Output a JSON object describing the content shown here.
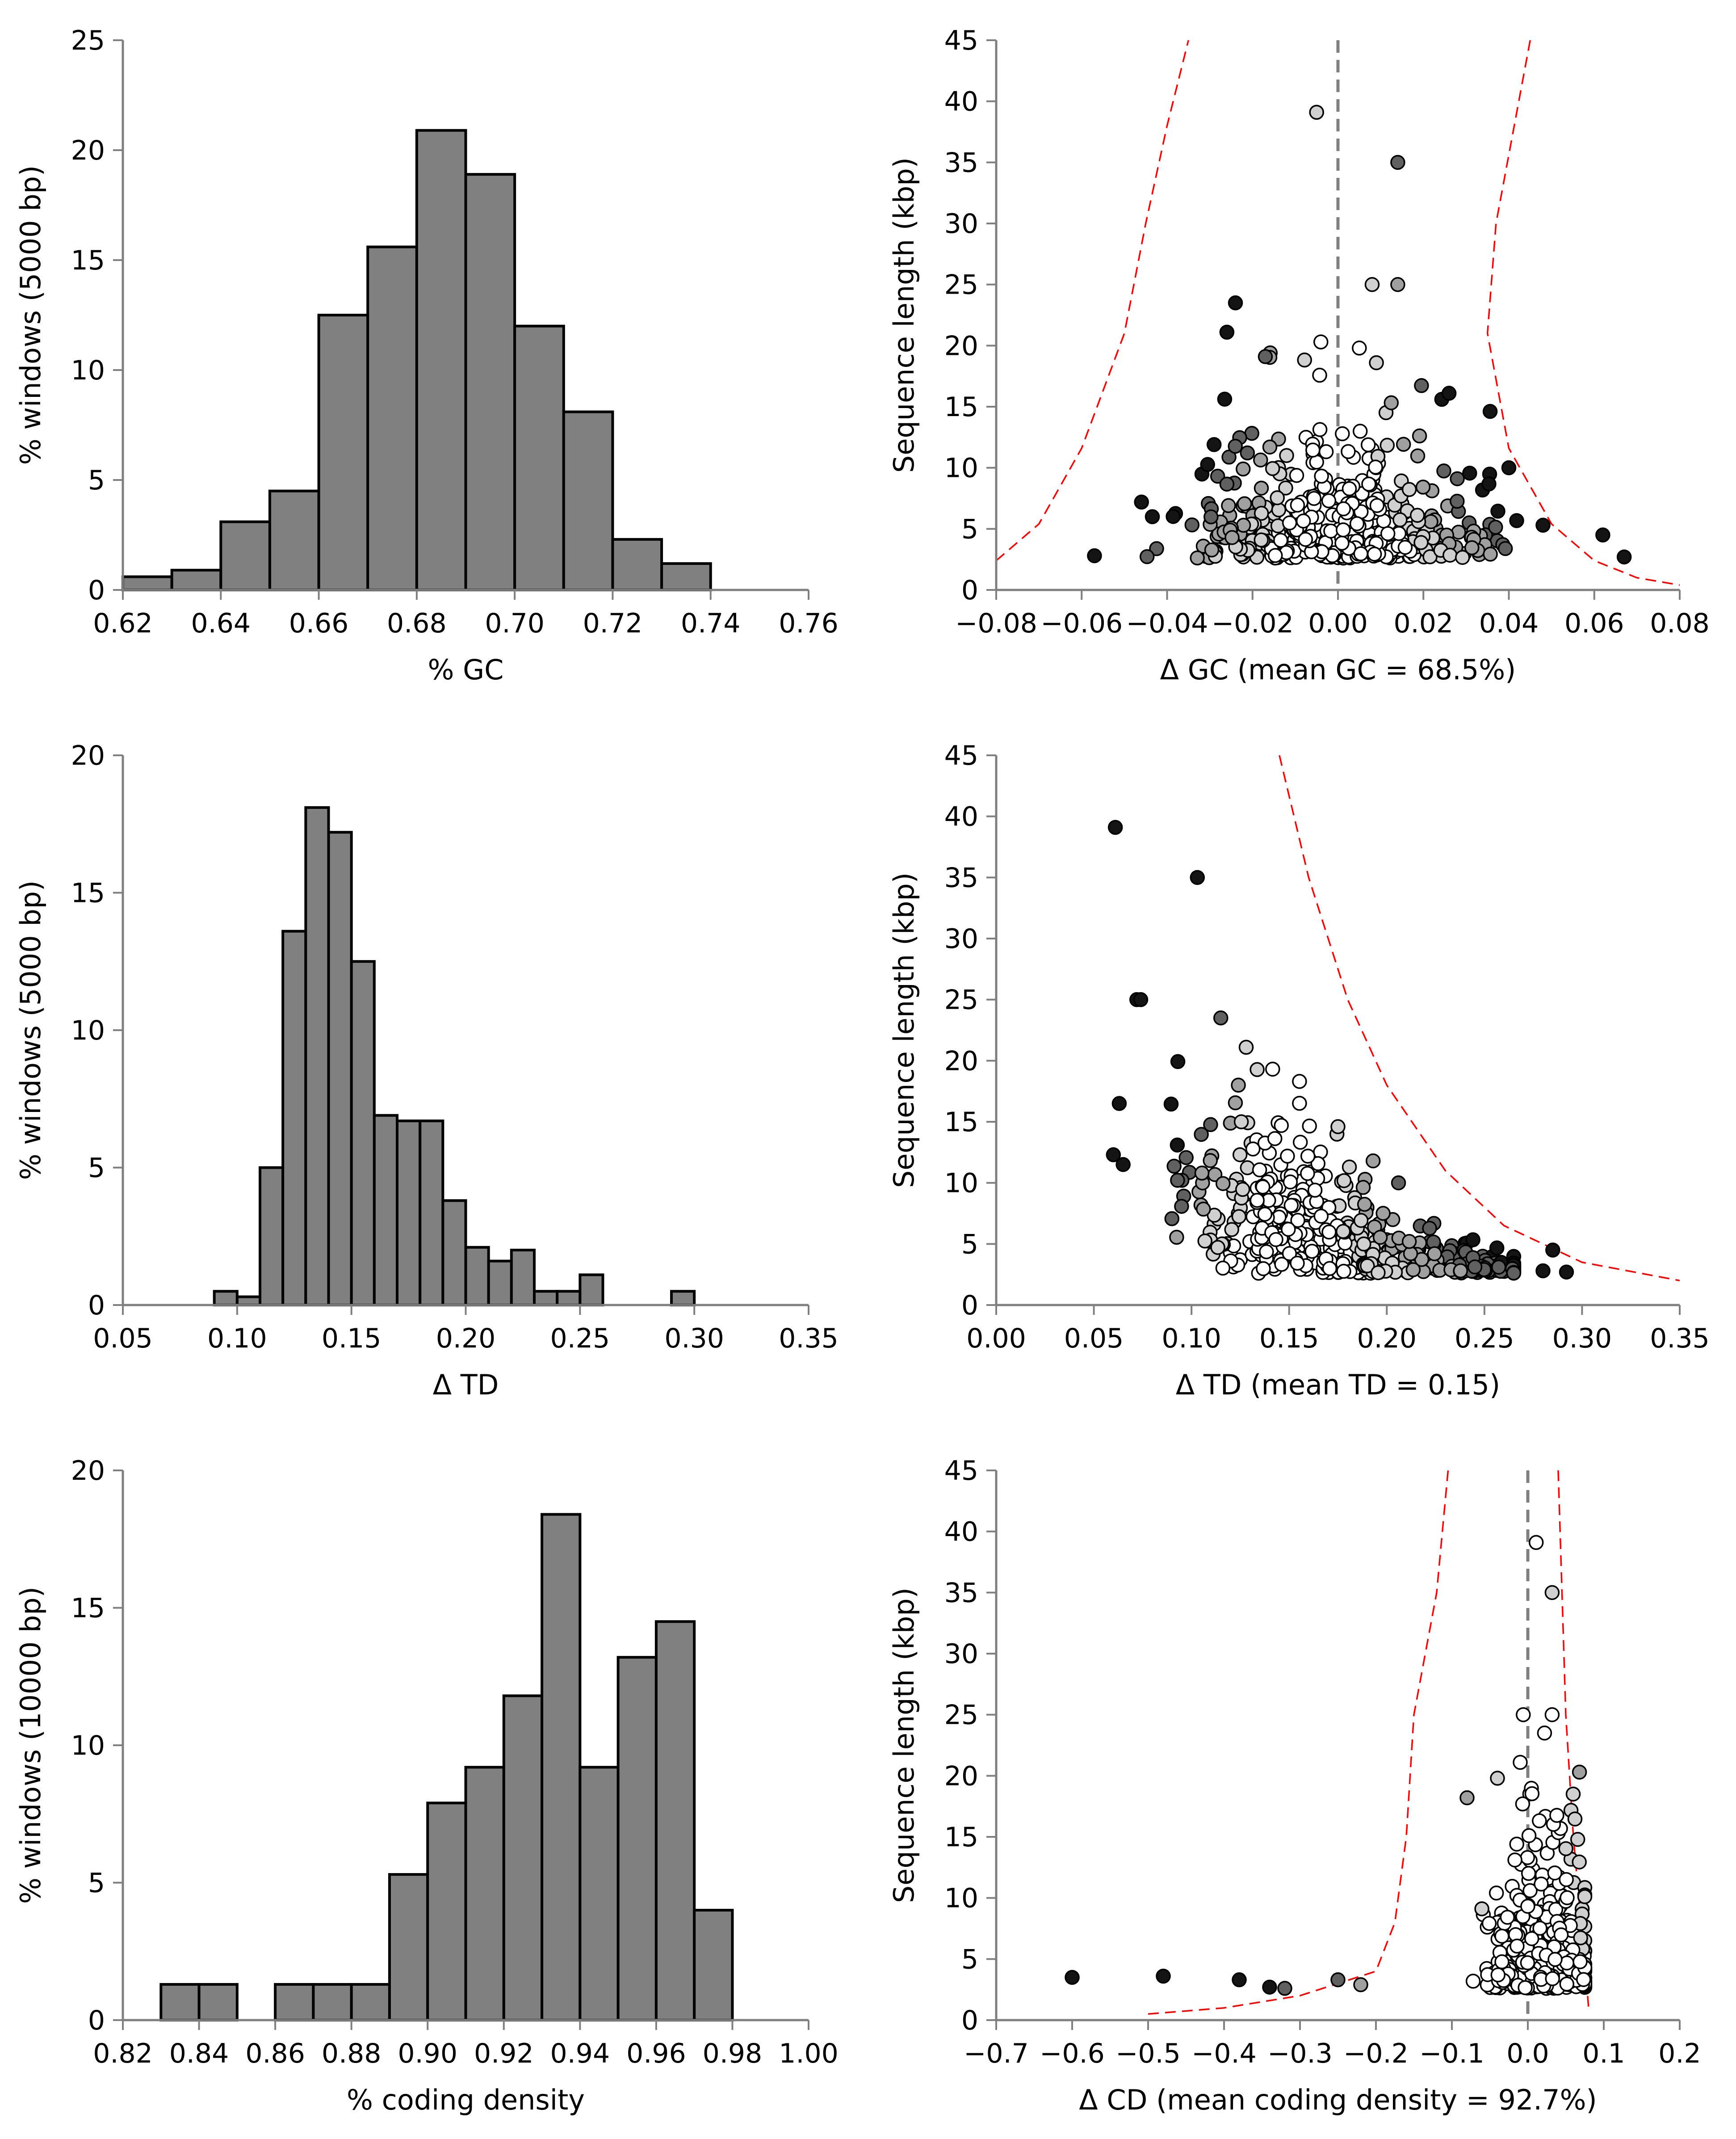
{
  "colors": {
    "bar_fill": "#808080",
    "bar_edge": "#000000",
    "axis": "#7f7f7f",
    "guide": "#7f7f7f",
    "threshold": "#ff0000",
    "point_edge": "#000000",
    "point_shades": [
      "#ffffff",
      "#d0d0d0",
      "#a0a0a0",
      "#606060",
      "#141414"
    ]
  },
  "chart_data": [
    {
      "id": "gc-hist",
      "type": "bar",
      "xlabel": "% GC",
      "ylabel": "% windows (5000 bp)",
      "xlim": [
        0.62,
        0.76
      ],
      "ylim": [
        0,
        25
      ],
      "xticks": [
        "0.62",
        "0.64",
        "0.66",
        "0.68",
        "0.70",
        "0.72",
        "0.74",
        "0.76"
      ],
      "yticks": [
        "0",
        "5",
        "10",
        "15",
        "20",
        "25"
      ],
      "bin_width": 0.01,
      "bin_starts": [
        0.62,
        0.63,
        0.64,
        0.65,
        0.66,
        0.67,
        0.68,
        0.69,
        0.7,
        0.71,
        0.72,
        0.73
      ],
      "values": [
        0.6,
        0.9,
        3.1,
        4.5,
        12.5,
        15.6,
        20.9,
        18.9,
        12.0,
        8.1,
        2.3,
        1.2
      ]
    },
    {
      "id": "gc-scatter",
      "type": "scatter",
      "xlabel": "Δ GC (mean GC = 68.5%)",
      "ylabel": "Sequence length (kbp)",
      "xlim": [
        -0.08,
        0.08
      ],
      "ylim": [
        0,
        45
      ],
      "xticks": [
        "−0.08",
        "−0.06",
        "−0.04",
        "−0.02",
        "0.00",
        "0.02",
        "0.04",
        "0.06",
        "0.08"
      ],
      "yticks": [
        "0",
        "5",
        "10",
        "15",
        "20",
        "25",
        "30",
        "35",
        "40",
        "45"
      ],
      "guide_x": 0,
      "threshold_left": [
        [
          -0.08,
          2.4
        ],
        [
          -0.07,
          5.4
        ],
        [
          -0.06,
          11.6
        ],
        [
          -0.05,
          21.0
        ],
        [
          -0.045,
          30.0
        ],
        [
          -0.04,
          38.0
        ],
        [
          -0.035,
          45.0
        ]
      ],
      "threshold_right": [
        [
          0.045,
          45.0
        ],
        [
          0.037,
          30.0
        ],
        [
          0.035,
          21.0
        ],
        [
          0.04,
          11.6
        ],
        [
          0.05,
          5.4
        ],
        [
          0.06,
          2.4
        ],
        [
          0.07,
          1.0
        ],
        [
          0.08,
          0.4
        ]
      ],
      "highlight_points": [
        [
          -0.005,
          39.1
        ],
        [
          0.014,
          35.0
        ],
        [
          0.008,
          25.0
        ],
        [
          0.014,
          25.0
        ],
        [
          -0.024,
          23.5
        ],
        [
          -0.026,
          21.1
        ],
        [
          -0.004,
          20.3
        ],
        [
          0.005,
          19.8
        ],
        [
          0.009,
          18.6
        ],
        [
          0.026,
          16.1
        ],
        [
          -0.017,
          19.1
        ],
        [
          0.062,
          4.5
        ],
        [
          0.067,
          2.7
        ],
        [
          -0.057,
          2.8
        ],
        [
          0.048,
          5.3
        ],
        [
          -0.029,
          11.9
        ],
        [
          0.04,
          10.0
        ]
      ],
      "cloud": {
        "seed": 11,
        "count": 480,
        "x_sd": 0.016,
        "min_len": 2.6,
        "tail": 3.4,
        "max_len": 20,
        "x_clip": [
          -0.058,
          0.05
        ]
      }
    },
    {
      "id": "td-hist",
      "type": "bar",
      "xlabel": "Δ TD",
      "ylabel": "% windows (5000 bp)",
      "xlim": [
        0.05,
        0.35
      ],
      "ylim": [
        0,
        20
      ],
      "xticks": [
        "0.05",
        "0.10",
        "0.15",
        "0.20",
        "0.25",
        "0.30",
        "0.35"
      ],
      "yticks": [
        "0",
        "5",
        "10",
        "15",
        "20"
      ],
      "bin_width": 0.01,
      "bin_starts": [
        0.09,
        0.1,
        0.11,
        0.12,
        0.13,
        0.14,
        0.15,
        0.16,
        0.17,
        0.18,
        0.19,
        0.2,
        0.21,
        0.22,
        0.23,
        0.24,
        0.25,
        0.29
      ],
      "values": [
        0.5,
        0.3,
        5.0,
        13.6,
        18.1,
        17.2,
        12.5,
        6.9,
        6.7,
        6.7,
        3.8,
        2.1,
        1.6,
        2.0,
        0.5,
        0.5,
        1.1,
        0.5
      ]
    },
    {
      "id": "td-scatter",
      "type": "scatter",
      "xlabel": "Δ TD (mean TD = 0.15)",
      "ylabel": "Sequence length (kbp)",
      "xlim": [
        0.0,
        0.35
      ],
      "ylim": [
        0,
        45
      ],
      "xticks": [
        "0.00",
        "0.05",
        "0.10",
        "0.15",
        "0.20",
        "0.25",
        "0.30",
        "0.35"
      ],
      "yticks": [
        "0",
        "5",
        "10",
        "15",
        "20",
        "25",
        "30",
        "35",
        "40",
        "45"
      ],
      "threshold_right": [
        [
          0.145,
          45.0
        ],
        [
          0.16,
          35.0
        ],
        [
          0.18,
          25.0
        ],
        [
          0.2,
          18.0
        ],
        [
          0.23,
          11.0
        ],
        [
          0.26,
          6.5
        ],
        [
          0.3,
          3.5
        ],
        [
          0.35,
          2.0
        ]
      ],
      "highlight_points": [
        [
          0.061,
          39.1
        ],
        [
          0.103,
          35.0
        ],
        [
          0.072,
          25.0
        ],
        [
          0.074,
          25.0
        ],
        [
          0.115,
          23.5
        ],
        [
          0.128,
          21.1
        ],
        [
          0.124,
          18.0
        ],
        [
          0.146,
          14.7
        ],
        [
          0.175,
          14.6
        ],
        [
          0.193,
          11.8
        ],
        [
          0.206,
          10.0
        ],
        [
          0.285,
          4.5
        ],
        [
          0.292,
          2.7
        ],
        [
          0.28,
          2.8
        ],
        [
          0.063,
          16.5
        ],
        [
          0.06,
          12.3
        ],
        [
          0.065,
          11.5
        ]
      ],
      "cloud": {
        "seed": 23,
        "count": 480,
        "x_sd": 0.016,
        "min_len": 2.6,
        "tail": 3.4,
        "max_len": 20,
        "x_clip": [
          -0.058,
          0.05
        ]
      }
    },
    {
      "id": "cd-hist",
      "type": "bar",
      "xlabel": "% coding density",
      "ylabel": "% windows (10000 bp)",
      "xlim": [
        0.82,
        1.0
      ],
      "ylim": [
        0,
        20
      ],
      "xticks": [
        "0.82",
        "0.84",
        "0.86",
        "0.88",
        "0.90",
        "0.92",
        "0.94",
        "0.96",
        "0.98",
        "1.00"
      ],
      "yticks": [
        "0",
        "5",
        "10",
        "15",
        "20"
      ],
      "bin_width": 0.01,
      "bin_starts": [
        0.83,
        0.84,
        0.86,
        0.87,
        0.88,
        0.89,
        0.9,
        0.91,
        0.92,
        0.93,
        0.94,
        0.95,
        0.96,
        0.97
      ],
      "values": [
        1.3,
        1.3,
        1.3,
        1.3,
        1.3,
        5.3,
        7.9,
        9.2,
        11.8,
        18.4,
        9.2,
        13.2,
        14.5,
        4.0
      ]
    },
    {
      "id": "cd-scatter",
      "type": "scatter",
      "xlabel": "Δ CD (mean coding density = 92.7%)",
      "ylabel": "Sequence length (kbp)",
      "xlim": [
        -0.7,
        0.2
      ],
      "ylim": [
        0,
        45
      ],
      "xticks": [
        "−0.7",
        "−0.6",
        "−0.5",
        "−0.4",
        "−0.3",
        "−0.2",
        "−0.1",
        "0.0",
        "0.1",
        "0.2"
      ],
      "yticks": [
        "0",
        "5",
        "10",
        "15",
        "20",
        "25",
        "30",
        "35",
        "40",
        "45"
      ],
      "guide_x": 0,
      "threshold_left": [
        [
          -0.5,
          0.5
        ],
        [
          -0.4,
          1.0
        ],
        [
          -0.3,
          2.0
        ],
        [
          -0.2,
          4.0
        ],
        [
          -0.175,
          8.0
        ],
        [
          -0.16,
          15.0
        ],
        [
          -0.15,
          25.0
        ],
        [
          -0.12,
          35.0
        ],
        [
          -0.105,
          45.0
        ]
      ],
      "threshold_right": [
        [
          0.04,
          45.0
        ],
        [
          0.045,
          35.0
        ],
        [
          0.05,
          25.0
        ],
        [
          0.06,
          15.0
        ],
        [
          0.07,
          8.0
        ],
        [
          0.075,
          5.0
        ],
        [
          0.08,
          1.0
        ]
      ],
      "highlight_points": [
        [
          0.011,
          39.1
        ],
        [
          0.032,
          35.0
        ],
        [
          -0.006,
          25.0
        ],
        [
          0.032,
          25.0
        ],
        [
          0.022,
          23.5
        ],
        [
          -0.01,
          21.1
        ],
        [
          0.068,
          20.3
        ],
        [
          -0.04,
          19.8
        ],
        [
          -0.08,
          18.2
        ],
        [
          -0.6,
          3.5
        ],
        [
          -0.48,
          3.6
        ],
        [
          -0.38,
          3.3
        ],
        [
          -0.34,
          2.7
        ],
        [
          -0.32,
          2.6
        ],
        [
          -0.25,
          3.3
        ],
        [
          -0.22,
          2.9
        ]
      ],
      "cloud": {
        "seed": 37,
        "count": 480,
        "x_sd": 0.016,
        "min_len": 2.6,
        "tail": 3.4,
        "max_len": 20,
        "x_clip": [
          -0.058,
          0.05
        ]
      }
    }
  ]
}
